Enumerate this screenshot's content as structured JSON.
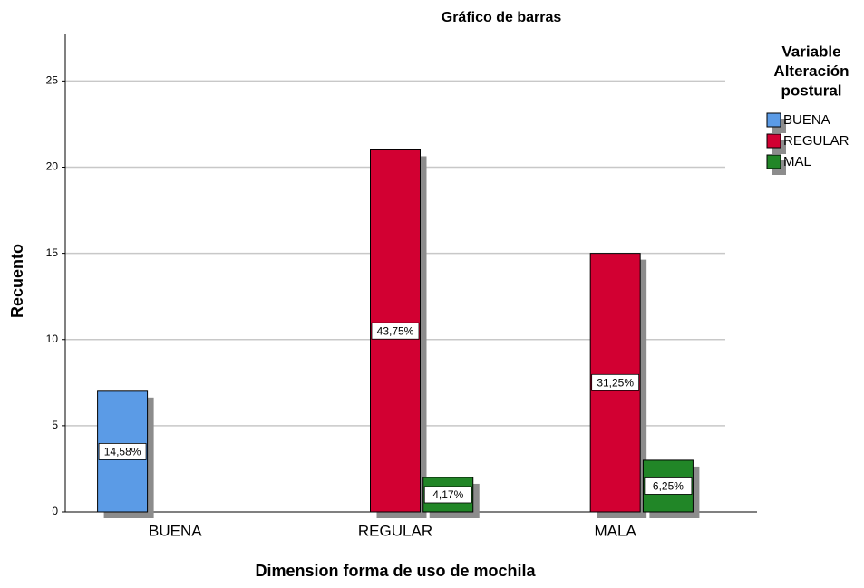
{
  "chart_data": {
    "type": "bar",
    "title": "Gráfico de barras",
    "x_label": "Dimension forma de uso de mochila",
    "y_label": "Recuento",
    "legend_title": [
      "Variable",
      "Alteración",
      "postural"
    ],
    "categories": [
      "BUENA",
      "REGULAR",
      "MALA"
    ],
    "series": [
      {
        "name": "BUENA",
        "color": "#5b9be6",
        "values": [
          7,
          null,
          null
        ],
        "percent_labels": [
          "14,58%",
          null,
          null
        ]
      },
      {
        "name": "REGULAR",
        "color": "#d20032",
        "values": [
          null,
          21,
          15
        ],
        "percent_labels": [
          null,
          "43,75%",
          "31,25%"
        ]
      },
      {
        "name": "MAL",
        "color": "#218627",
        "values": [
          null,
          2,
          3
        ],
        "percent_labels": [
          null,
          "4,17%",
          "6,25%"
        ]
      }
    ],
    "ylim": [
      0,
      27.7
    ],
    "yticks": [
      0,
      5,
      10,
      15,
      20,
      25
    ],
    "grid": true,
    "legend": "right"
  }
}
